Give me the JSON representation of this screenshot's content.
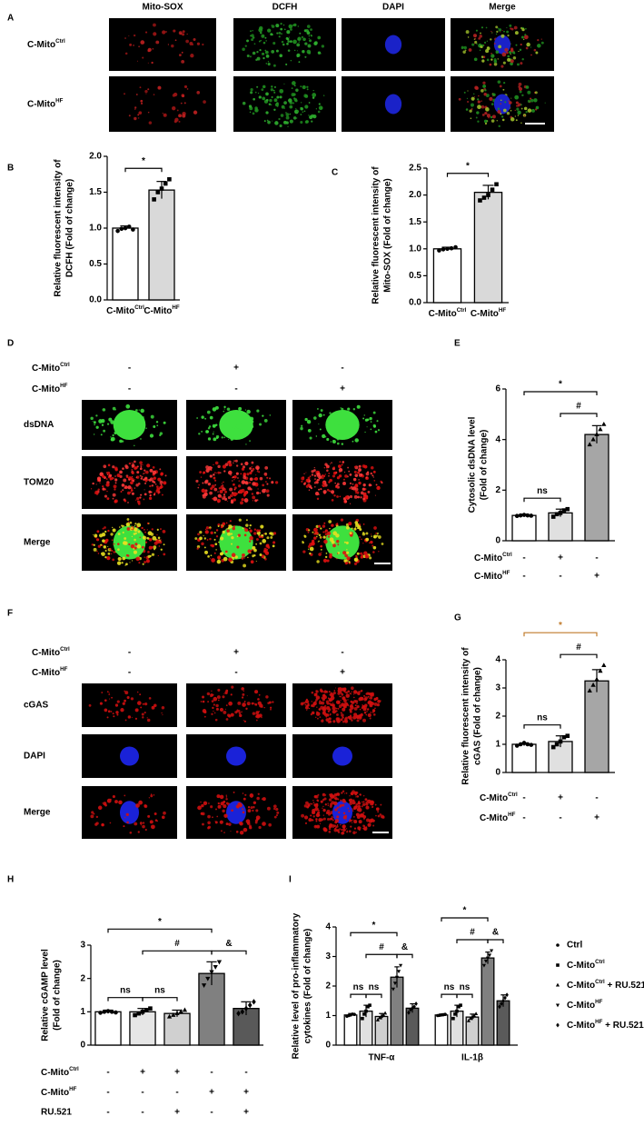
{
  "image_panels": [
    {
      "panel": "A",
      "columns": [
        "Mito-SOX",
        "DCFH",
        "DAPI",
        "Merge"
      ],
      "rows": [
        {
          "text": "C-Mito",
          "sup": "Ctrl"
        },
        {
          "text": "C-Mito",
          "sup": "HF"
        }
      ]
    },
    {
      "panel": "D",
      "conditions": [
        {
          "label": {
            "text": "C-Mito",
            "sup": "Ctrl"
          },
          "signs": [
            "-",
            "+",
            "-"
          ]
        },
        {
          "label": {
            "text": "C-Mito",
            "sup": "HF"
          },
          "signs": [
            "-",
            "-",
            "+"
          ]
        }
      ],
      "rows": [
        "dsDNA",
        "TOM20",
        "Merge"
      ]
    },
    {
      "panel": "F",
      "conditions": [
        {
          "label": {
            "text": "C-Mito",
            "sup": "Ctrl"
          },
          "signs": [
            "-",
            "+",
            "-"
          ]
        },
        {
          "label": {
            "text": "C-Mito",
            "sup": "HF"
          },
          "signs": [
            "-",
            "-",
            "+"
          ]
        }
      ],
      "rows": [
        "cGAS",
        "DAPI",
        "Merge"
      ]
    }
  ],
  "chart_data": [
    {
      "panel": "B",
      "type": "bar",
      "y_label": [
        "Relative fluorescent intensity of",
        "DCFH (Fold of change)"
      ],
      "categories": [
        {
          "text": "C-Mito",
          "sup": "Ctrl"
        },
        {
          "text": "C-Mito",
          "sup": "HF"
        }
      ],
      "values": [
        1.0,
        1.53
      ],
      "errors": [
        0.03,
        0.12
      ],
      "points": [
        [
          0.96,
          0.99,
          1.0,
          1.02,
          0.98
        ],
        [
          1.4,
          1.5,
          1.55,
          1.62,
          1.68
        ]
      ],
      "markers": [
        "circle",
        "square"
      ],
      "colors": [
        "#ffffff",
        "#d9d9d9"
      ],
      "ylim": [
        0,
        2
      ],
      "yticks": [
        {
          "value": 0,
          "label": "0.0"
        },
        0.5,
        {
          "value": 1,
          "label": "1.0"
        },
        1.5,
        {
          "value": 2,
          "label": "2.0"
        }
      ],
      "brackets": [
        {
          "from": 0,
          "to": 1,
          "label": "*"
        }
      ]
    },
    {
      "panel": "C",
      "type": "bar",
      "y_label": [
        "Relative fluorescent intensity of",
        "Mito-SOX (Fold of change)"
      ],
      "categories": [
        {
          "text": "C-Mito",
          "sup": "Ctrl"
        },
        {
          "text": "C-Mito",
          "sup": "HF"
        }
      ],
      "values": [
        1.0,
        2.05
      ],
      "errors": [
        0.03,
        0.13
      ],
      "points": [
        [
          0.97,
          0.99,
          1.0,
          1.01,
          1.03
        ],
        [
          1.9,
          1.95,
          2.0,
          2.1,
          2.2
        ]
      ],
      "markers": [
        "circle",
        "square"
      ],
      "colors": [
        "#ffffff",
        "#d9d9d9"
      ],
      "ylim": [
        0,
        2.5
      ],
      "yticks": [
        {
          "value": 0,
          "label": "0.0"
        },
        0.5,
        {
          "value": 1,
          "label": "1.0"
        },
        1.5,
        {
          "value": 2,
          "label": "2.0"
        },
        2.5
      ],
      "brackets": [
        {
          "from": 0,
          "to": 1,
          "label": "*"
        }
      ]
    },
    {
      "panel": "E",
      "type": "bar",
      "y_label": [
        "Cytosolic dsDNA level",
        "(Fold of change)"
      ],
      "values": [
        1.0,
        1.1,
        4.2
      ],
      "errors": [
        0.05,
        0.15,
        0.35
      ],
      "points": [
        [
          0.98,
          1.0,
          1.02,
          1.0,
          0.99
        ],
        [
          0.95,
          1.05,
          1.1,
          1.2,
          1.25
        ],
        [
          3.8,
          4.0,
          4.2,
          4.4,
          4.6
        ]
      ],
      "markers": [
        "circle",
        "square",
        "triangle"
      ],
      "colors": [
        "#ffffff",
        "#e0e0e0",
        "#a6a6a6"
      ],
      "ylim": [
        0,
        6
      ],
      "yticks": [
        0,
        2,
        4,
        6
      ],
      "conditions": [
        {
          "label": {
            "text": "C-Mito",
            "sup": "Ctrl"
          },
          "signs": [
            "-",
            "+",
            "-"
          ]
        },
        {
          "label": {
            "text": "C-Mito",
            "sup": "HF"
          },
          "signs": [
            "-",
            "-",
            "+"
          ]
        }
      ],
      "brackets": [
        {
          "from": 0,
          "to": 1,
          "label": "ns"
        },
        {
          "from": 1,
          "to": 2,
          "label": "#"
        },
        {
          "from": 0,
          "to": 2,
          "label": "*"
        }
      ]
    },
    {
      "panel": "G",
      "type": "bar",
      "y_label": [
        "Relative fluorescent intensity of",
        "cGAS (Fold of change)"
      ],
      "values": [
        1.0,
        1.1,
        3.25
      ],
      "errors": [
        0.05,
        0.2,
        0.4
      ],
      "points": [
        [
          0.95,
          1.0,
          1.05,
          1.0,
          0.98
        ],
        [
          0.9,
          1.0,
          1.1,
          1.25,
          1.3
        ],
        [
          2.9,
          3.1,
          3.3,
          3.6,
          3.8
        ]
      ],
      "markers": [
        "circle",
        "square",
        "triangle"
      ],
      "colors": [
        "#ffffff",
        "#e0e0e0",
        "#a6a6a6"
      ],
      "ylim": [
        0,
        4
      ],
      "yticks": [
        0,
        1,
        2,
        3,
        4
      ],
      "conditions": [
        {
          "label": {
            "text": "C-Mito",
            "sup": "Ctrl"
          },
          "signs": [
            "-",
            "+",
            "-"
          ]
        },
        {
          "label": {
            "text": "C-Mito",
            "sup": "HF"
          },
          "signs": [
            "-",
            "-",
            "+"
          ]
        }
      ],
      "brackets": [
        {
          "from": 0,
          "to": 1,
          "label": "ns"
        },
        {
          "from": 1,
          "to": 2,
          "label": "#"
        },
        {
          "from": 0,
          "to": 2,
          "label": "*",
          "color": "#c07a2a"
        }
      ]
    },
    {
      "panel": "H",
      "type": "bar",
      "y_label": [
        "Relative cGAMP level",
        "(Fold of change)"
      ],
      "values": [
        1.0,
        1.0,
        0.95,
        2.15,
        1.1
      ],
      "errors": [
        0.05,
        0.1,
        0.1,
        0.35,
        0.2
      ],
      "points": [
        [
          0.97,
          1.0,
          1.02,
          1.0,
          0.98
        ],
        [
          0.9,
          0.95,
          1.0,
          1.05,
          1.1
        ],
        [
          0.85,
          0.9,
          0.95,
          1.0,
          1.05
        ],
        [
          1.8,
          2.0,
          2.2,
          2.35,
          2.5
        ],
        [
          0.95,
          1.0,
          1.1,
          1.2,
          1.3
        ]
      ],
      "markers": [
        "circle",
        "square",
        "triangle",
        "triangle-down",
        "diamond"
      ],
      "colors": [
        "#ffffff",
        "#e6e6e6",
        "#d0d0d0",
        "#808080",
        "#595959"
      ],
      "ylim": [
        0,
        3
      ],
      "yticks": [
        0,
        1,
        2,
        3
      ],
      "conditions": [
        {
          "label": {
            "text": "C-Mito",
            "sup": "Ctrl"
          },
          "signs": [
            "-",
            "+",
            "+",
            "-",
            "-"
          ]
        },
        {
          "label": {
            "text": "C-Mito",
            "sup": "HF"
          },
          "signs": [
            "-",
            "-",
            "-",
            "+",
            "+"
          ]
        },
        {
          "label": "RU.521",
          "signs": [
            "-",
            "-",
            "+",
            "-",
            "+"
          ]
        }
      ],
      "brackets": [
        {
          "from": 0,
          "to": 1,
          "label": "ns"
        },
        {
          "from": 1,
          "to": 2,
          "label": "ns"
        },
        {
          "from": 1,
          "to": 3,
          "label": "#"
        },
        {
          "from": 0,
          "to": 3,
          "label": "*"
        },
        {
          "from": 3,
          "to": 4,
          "label": "&"
        }
      ]
    },
    {
      "panel": "I",
      "type": "grouped_bar",
      "y_label": [
        "Relative level of pro-inflammatory",
        "cytokines (Fold of change)"
      ],
      "categories": [
        "TNF-α",
        "IL-1β"
      ],
      "series": [
        {
          "name": "Ctrl",
          "color": "#ffffff",
          "marker": "circle",
          "values": [
            1.02,
            1.02
          ],
          "errors": [
            0.05,
            0.03
          ],
          "points": [
            [
              0.98,
              1.0,
              1.02,
              1.05,
              1.04
            ],
            [
              1.0,
              1.01,
              1.02,
              1.03,
              1.04
            ]
          ]
        },
        {
          "name": {
            "text": "C-Mito",
            "sup": "Ctrl"
          },
          "color": "#e0e0e0",
          "marker": "square",
          "values": [
            1.15,
            1.15
          ],
          "errors": [
            0.2,
            0.2
          ],
          "points": [
            [
              0.9,
              1.05,
              1.15,
              1.3,
              1.35
            ],
            [
              0.9,
              1.05,
              1.15,
              1.3,
              1.35
            ]
          ]
        },
        {
          "name": {
            "text": "C-Mito",
            "sup": "Ctrl",
            "suffix": " + RU.521"
          },
          "color": "#cfcfcf",
          "marker": "triangle",
          "values": [
            0.97,
            0.95
          ],
          "errors": [
            0.1,
            0.1
          ],
          "points": [
            [
              0.85,
              0.92,
              0.97,
              1.02,
              1.08
            ],
            [
              0.82,
              0.9,
              0.95,
              1.0,
              1.06
            ]
          ]
        },
        {
          "name": {
            "text": "C-Mito",
            "sup": "HF"
          },
          "color": "#808080",
          "marker": "triangle-down",
          "values": [
            2.3,
            2.95
          ],
          "errors": [
            0.35,
            0.2
          ],
          "points": [
            [
              1.9,
              2.1,
              2.3,
              2.5,
              2.7
            ],
            [
              2.7,
              2.85,
              2.95,
              3.05,
              3.2
            ]
          ]
        },
        {
          "name": {
            "text": "C-Mito",
            "sup": "HF",
            "suffix": " + RU.521"
          },
          "color": "#5a5a5a",
          "marker": "diamond",
          "values": [
            1.25,
            1.5
          ],
          "errors": [
            0.15,
            0.2
          ],
          "points": [
            [
              1.1,
              1.2,
              1.25,
              1.3,
              1.4
            ],
            [
              1.3,
              1.4,
              1.5,
              1.6,
              1.7
            ]
          ]
        }
      ],
      "ylim": [
        0,
        4
      ],
      "yticks": [
        0,
        1,
        2,
        3,
        4
      ],
      "legend": "right",
      "brackets": [
        {
          "from": 0,
          "to": 1,
          "label": "ns"
        },
        {
          "from": 1,
          "to": 2,
          "label": "ns"
        },
        {
          "from": 1,
          "to": 3,
          "label": "#"
        },
        {
          "from": 0,
          "to": 3,
          "label": "*"
        },
        {
          "from": 3,
          "to": 4,
          "label": "&"
        }
      ]
    }
  ]
}
